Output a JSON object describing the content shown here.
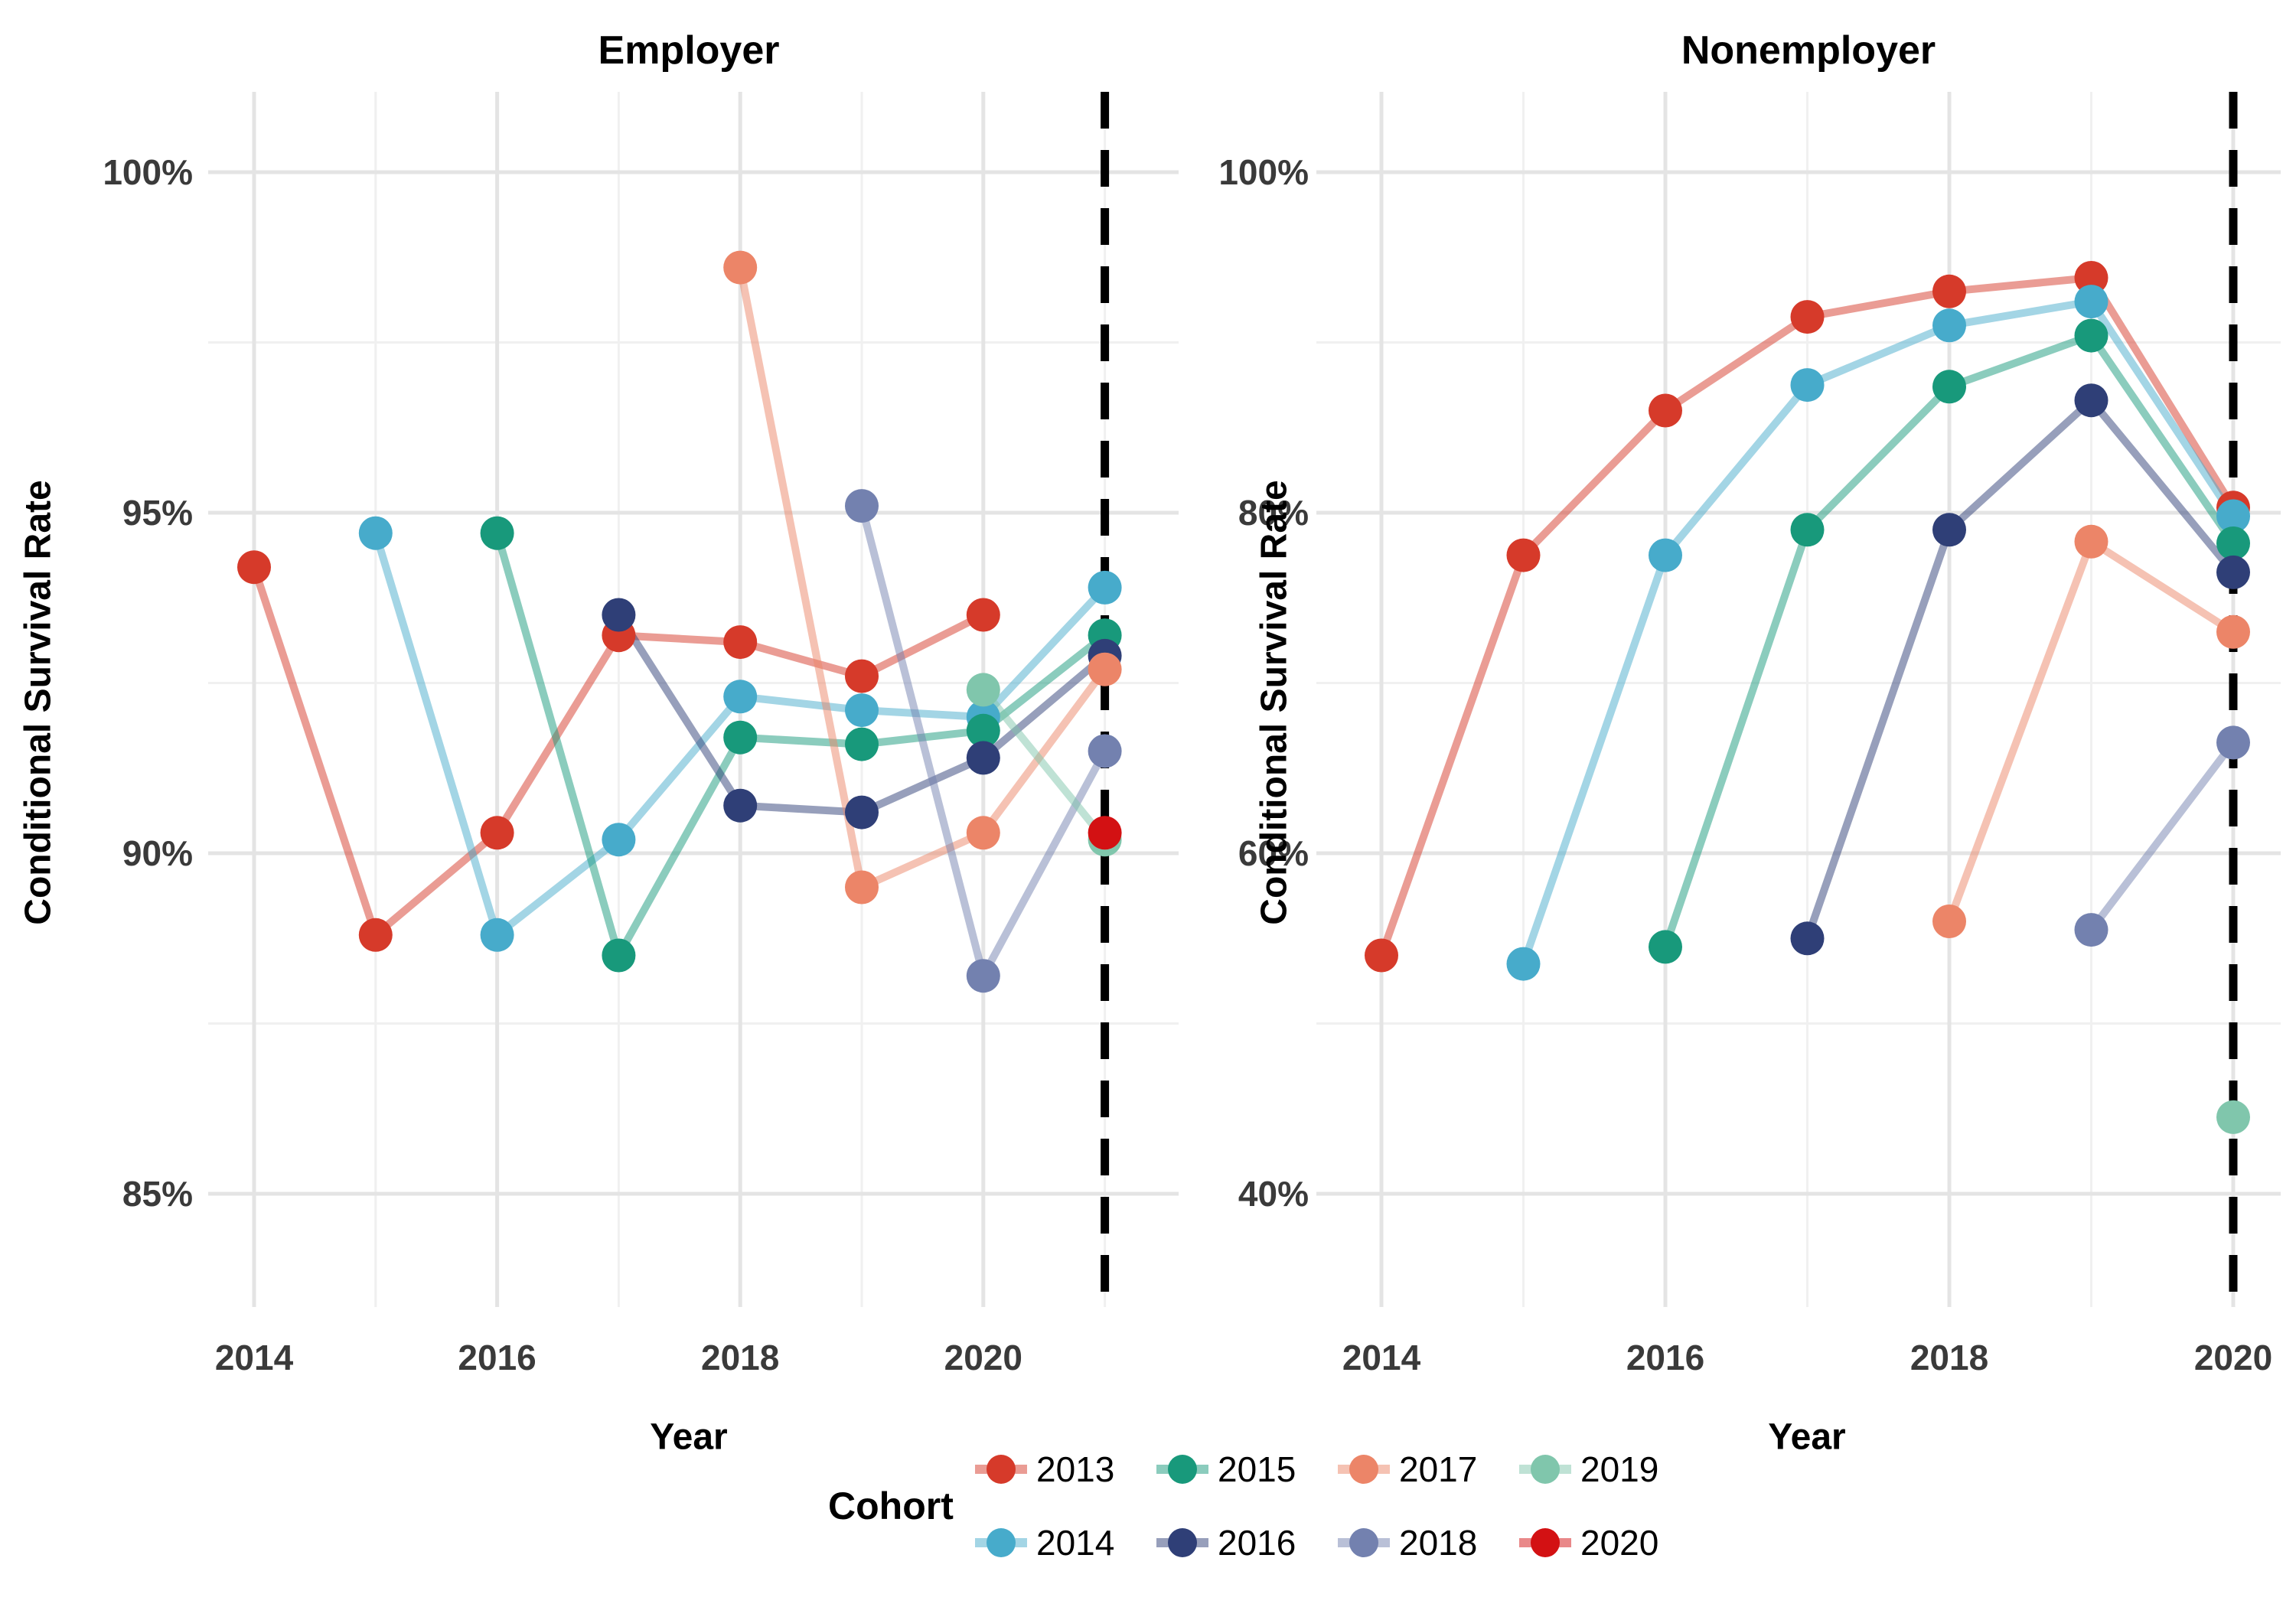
{
  "legend": {
    "title": "Cohort",
    "entries": [
      {
        "label": "2013",
        "color": "#D63A2A"
      },
      {
        "label": "2014",
        "color": "#47ABCB"
      },
      {
        "label": "2015",
        "color": "#18997B"
      },
      {
        "label": "2016",
        "color": "#2F3F77"
      },
      {
        "label": "2017",
        "color": "#EC8568"
      },
      {
        "label": "2018",
        "color": "#7381AF"
      },
      {
        "label": "2019",
        "color": "#80C6AC"
      },
      {
        "label": "2020",
        "color": "#D31113"
      }
    ]
  },
  "chart_data": [
    {
      "type": "line",
      "title": "Employer",
      "xlabel": "Year",
      "ylabel": "Conditional Survival Rate",
      "x_ticks": [
        2014,
        2016,
        2018,
        2020
      ],
      "x_minor": [
        2015,
        2017,
        2019,
        2021
      ],
      "y_ticks": [
        100,
        95,
        90,
        85
      ],
      "y_tick_labels": [
        "100%",
        "95%",
        "90%",
        "85%"
      ],
      "ylim": [
        84,
        101
      ],
      "xlim": [
        2013.6,
        2021.6
      ],
      "grid": true,
      "dashed_vline_x": 2021,
      "series": [
        {
          "name": "2013",
          "color": "#D63A2A",
          "points": [
            [
              2014,
              94.2
            ],
            [
              2015,
              88.8
            ],
            [
              2016,
              90.3
            ],
            [
              2017,
              93.2
            ],
            [
              2018,
              93.1
            ],
            [
              2019,
              92.6
            ],
            [
              2020,
              93.5
            ]
          ]
        },
        {
          "name": "2014",
          "color": "#47ABCB",
          "points": [
            [
              2015,
              94.7
            ],
            [
              2016,
              88.8
            ],
            [
              2017,
              90.2
            ],
            [
              2018,
              92.3
            ],
            [
              2019,
              92.1
            ],
            [
              2020,
              92.0
            ],
            [
              2021,
              93.9
            ]
          ]
        },
        {
          "name": "2015",
          "color": "#18997B",
          "points": [
            [
              2016,
              94.7
            ],
            [
              2017,
              88.5
            ],
            [
              2018,
              91.7
            ],
            [
              2019,
              91.6
            ],
            [
              2020,
              91.8
            ],
            [
              2021,
              93.2
            ]
          ]
        },
        {
          "name": "2016",
          "color": "#2F3F77",
          "points": [
            [
              2017,
              93.5
            ],
            [
              2018,
              90.7
            ],
            [
              2019,
              90.6
            ],
            [
              2020,
              91.4
            ],
            [
              2021,
              92.9
            ]
          ]
        },
        {
          "name": "2017",
          "color": "#EC8568",
          "points": [
            [
              2018,
              98.6
            ],
            [
              2019,
              89.5
            ],
            [
              2020,
              90.3
            ],
            [
              2021,
              92.7
            ]
          ]
        },
        {
          "name": "2018",
          "color": "#7381AF",
          "points": [
            [
              2019,
              95.1
            ],
            [
              2020,
              88.2
            ],
            [
              2021,
              91.5
            ]
          ]
        },
        {
          "name": "2019",
          "color": "#80C6AC",
          "points": [
            [
              2020,
              92.4
            ],
            [
              2021,
              90.2
            ]
          ]
        },
        {
          "name": "2020",
          "color": "#D31113",
          "points": [
            [
              2021,
              90.3
            ]
          ]
        }
      ]
    },
    {
      "type": "line",
      "title": "Nonemployer",
      "xlabel": "Year",
      "ylabel": "Conditional Survival Rate",
      "x_ticks": [
        2014,
        2016,
        2018,
        2020
      ],
      "x_minor": [
        2015,
        2017,
        2019
      ],
      "y_ticks": [
        100,
        80,
        60,
        40
      ],
      "y_tick_labels": [
        "100%",
        "80%",
        "60%",
        "40%"
      ],
      "ylim": [
        36,
        104
      ],
      "xlim": [
        2013.6,
        2020.35
      ],
      "grid": true,
      "dashed_vline_x": 2020,
      "series": [
        {
          "name": "2013",
          "color": "#D63A2A",
          "points": [
            [
              2014,
              54.0
            ],
            [
              2015,
              77.5
            ],
            [
              2016,
              86.0
            ],
            [
              2017,
              91.5
            ],
            [
              2018,
              93.0
            ],
            [
              2019,
              93.8
            ],
            [
              2020,
              80.3
            ]
          ]
        },
        {
          "name": "2014",
          "color": "#47ABCB",
          "points": [
            [
              2015,
              53.5
            ],
            [
              2016,
              77.5
            ],
            [
              2017,
              87.5
            ],
            [
              2018,
              91.0
            ],
            [
              2019,
              92.4
            ],
            [
              2020,
              79.8
            ]
          ]
        },
        {
          "name": "2015",
          "color": "#18997B",
          "points": [
            [
              2016,
              54.5
            ],
            [
              2017,
              79.0
            ],
            [
              2018,
              87.4
            ],
            [
              2019,
              90.4
            ],
            [
              2020,
              78.2
            ]
          ]
        },
        {
          "name": "2016",
          "color": "#2F3F77",
          "points": [
            [
              2017,
              55.0
            ],
            [
              2018,
              79.0
            ],
            [
              2019,
              86.6
            ],
            [
              2020,
              76.5
            ]
          ]
        },
        {
          "name": "2017",
          "color": "#EC8568",
          "points": [
            [
              2018,
              56.0
            ],
            [
              2019,
              78.3
            ],
            [
              2020,
              73.0
            ]
          ]
        },
        {
          "name": "2018",
          "color": "#7381AF",
          "points": [
            [
              2019,
              55.5
            ],
            [
              2020,
              66.5
            ]
          ]
        },
        {
          "name": "2019",
          "color": "#80C6AC",
          "points": [
            [
              2020,
              44.5
            ]
          ]
        }
      ]
    }
  ]
}
